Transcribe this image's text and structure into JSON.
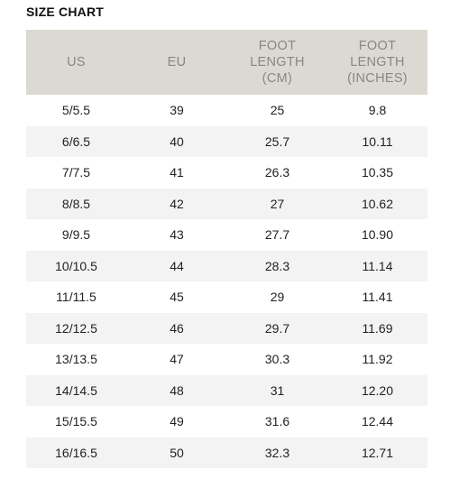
{
  "title": "SIZE CHART",
  "headers": {
    "us": "US",
    "eu": "EU",
    "foot_cm": [
      "FOOT",
      "LENGTH",
      "(CM)"
    ],
    "foot_in": [
      "FOOT",
      "LENGTH",
      "(INCHES)"
    ]
  },
  "rows": [
    [
      "5/5.5",
      "39",
      "25",
      "9.8"
    ],
    [
      "6/6.5",
      "40",
      "25.7",
      "10.11"
    ],
    [
      "7/7.5",
      "41",
      "26.3",
      "10.35"
    ],
    [
      "8/8.5",
      "42",
      "27",
      "10.62"
    ],
    [
      "9/9.5",
      "43",
      "27.7",
      "10.90"
    ],
    [
      "10/10.5",
      "44",
      "28.3",
      "11.14"
    ],
    [
      "11/11.5",
      "45",
      "29",
      "11.41"
    ],
    [
      "12/12.5",
      "46",
      "29.7",
      "11.69"
    ],
    [
      "13/13.5",
      "47",
      "30.3",
      "11.92"
    ],
    [
      "14/14.5",
      "48",
      "31",
      "12.20"
    ],
    [
      "15/15.5",
      "49",
      "31.6",
      "12.44"
    ],
    [
      "16/16.5",
      "50",
      "32.3",
      "12.71"
    ]
  ]
}
